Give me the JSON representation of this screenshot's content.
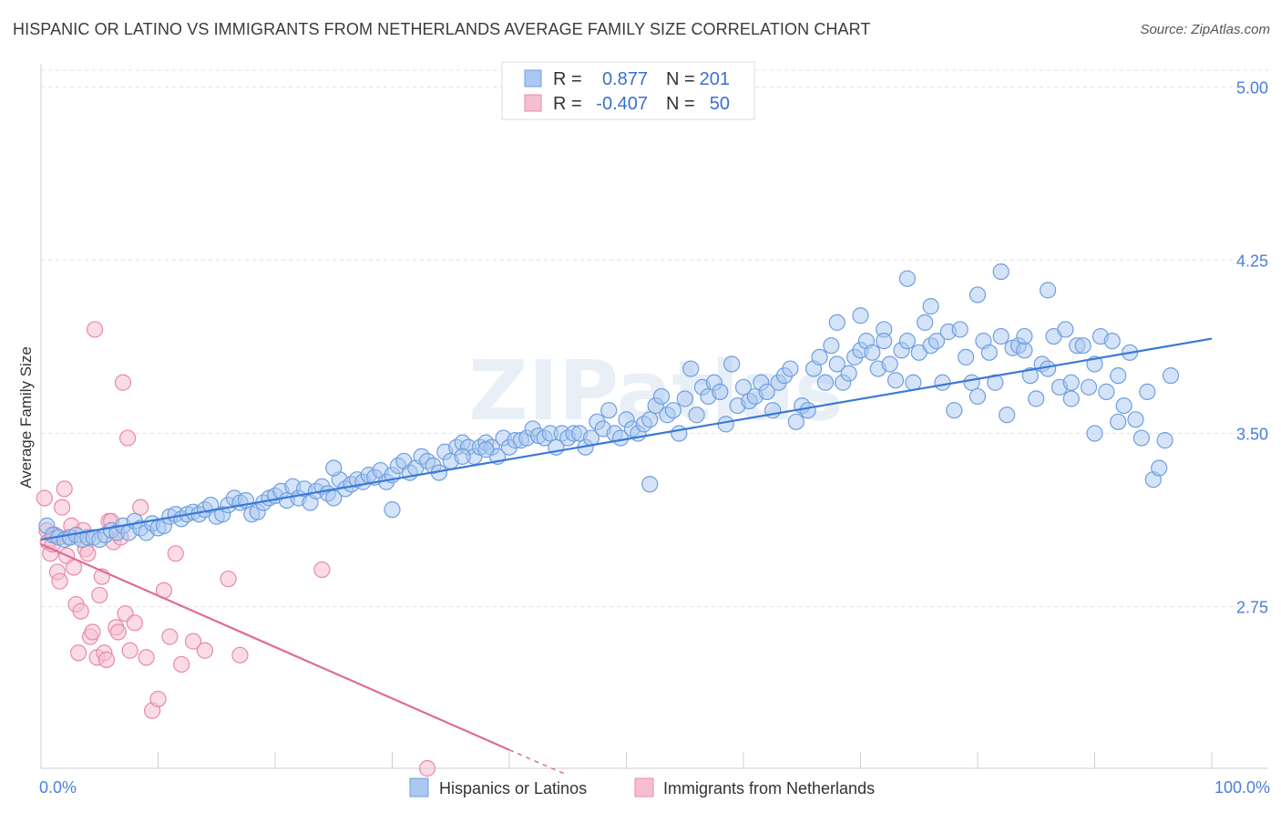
{
  "title": "HISPANIC OR LATINO VS IMMIGRANTS FROM NETHERLANDS AVERAGE FAMILY SIZE CORRELATION CHART",
  "source": "Source: ZipAtlas.com",
  "watermark": "ZIPatlas",
  "colors": {
    "blue_fill": "#aac8f0",
    "blue_stroke": "#6e9fe0",
    "blue_line": "#3a78d8",
    "pink_fill": "#f6bfd0",
    "pink_stroke": "#e889a8",
    "pink_line": "#e06a98",
    "tick_text": "#4a7fd8",
    "grid": "#e2e2e2"
  },
  "legend_top": {
    "rows": [
      {
        "r_label": "R =",
        "r_value": "0.877",
        "n_label": "N =",
        "n_value": "201"
      },
      {
        "r_label": "R =",
        "r_value": "-0.407",
        "n_label": "N =",
        "n_value": "50"
      }
    ]
  },
  "chart_data": {
    "type": "scatter",
    "title": "HISPANIC OR LATINO VS IMMIGRANTS FROM NETHERLANDS AVERAGE FAMILY SIZE CORRELATION CHART",
    "xlabel": "",
    "ylabel": "Average Family Size",
    "xlim": [
      0,
      100
    ],
    "ylim": [
      2.05,
      5.1
    ],
    "x_tick_labels": [
      "0.0%",
      "100.0%"
    ],
    "y_ticks": [
      2.75,
      3.5,
      4.25,
      5.0
    ],
    "y_tick_labels": [
      "2.75",
      "3.50",
      "4.25",
      "5.00"
    ],
    "grid": true,
    "legend_placement": "top-center and bottom",
    "series": [
      {
        "name": "Hispanics or Latinos",
        "r": 0.877,
        "n": 201,
        "trend": {
          "x": [
            0,
            100
          ],
          "y": [
            3.04,
            3.91
          ]
        },
        "points": [
          [
            0.5,
            3.1
          ],
          [
            1,
            3.06
          ],
          [
            1.5,
            3.05
          ],
          [
            2,
            3.04
          ],
          [
            2.5,
            3.05
          ],
          [
            3,
            3.06
          ],
          [
            3.5,
            3.04
          ],
          [
            4,
            3.05
          ],
          [
            4.5,
            3.05
          ],
          [
            5,
            3.04
          ],
          [
            5.5,
            3.06
          ],
          [
            6,
            3.08
          ],
          [
            6.5,
            3.07
          ],
          [
            7,
            3.1
          ],
          [
            7.5,
            3.07
          ],
          [
            8,
            3.12
          ],
          [
            8.5,
            3.09
          ],
          [
            9,
            3.07
          ],
          [
            9.5,
            3.11
          ],
          [
            10,
            3.09
          ],
          [
            10.5,
            3.1
          ],
          [
            11,
            3.14
          ],
          [
            11.5,
            3.15
          ],
          [
            12,
            3.13
          ],
          [
            12.5,
            3.15
          ],
          [
            13,
            3.16
          ],
          [
            13.5,
            3.15
          ],
          [
            14,
            3.17
          ],
          [
            14.5,
            3.19
          ],
          [
            15,
            3.14
          ],
          [
            15.5,
            3.15
          ],
          [
            16,
            3.19
          ],
          [
            16.5,
            3.22
          ],
          [
            17,
            3.2
          ],
          [
            17.5,
            3.21
          ],
          [
            18,
            3.15
          ],
          [
            18.5,
            3.16
          ],
          [
            19,
            3.2
          ],
          [
            19.5,
            3.22
          ],
          [
            20,
            3.23
          ],
          [
            20.5,
            3.25
          ],
          [
            21,
            3.21
          ],
          [
            21.5,
            3.27
          ],
          [
            22,
            3.22
          ],
          [
            22.5,
            3.26
          ],
          [
            23,
            3.2
          ],
          [
            23.5,
            3.25
          ],
          [
            24,
            3.27
          ],
          [
            24.5,
            3.24
          ],
          [
            25,
            3.22
          ],
          [
            25.5,
            3.3
          ],
          [
            26,
            3.26
          ],
          [
            26.5,
            3.28
          ],
          [
            27,
            3.3
          ],
          [
            27.5,
            3.29
          ],
          [
            28,
            3.32
          ],
          [
            28.5,
            3.31
          ],
          [
            29,
            3.34
          ],
          [
            29.5,
            3.29
          ],
          [
            30,
            3.32
          ],
          [
            30.5,
            3.36
          ],
          [
            31,
            3.38
          ],
          [
            31.5,
            3.33
          ],
          [
            32,
            3.35
          ],
          [
            32.5,
            3.4
          ],
          [
            33,
            3.38
          ],
          [
            33.5,
            3.36
          ],
          [
            34,
            3.33
          ],
          [
            34.5,
            3.42
          ],
          [
            35,
            3.38
          ],
          [
            35.5,
            3.44
          ],
          [
            36,
            3.46
          ],
          [
            36.5,
            3.44
          ],
          [
            37,
            3.4
          ],
          [
            37.5,
            3.44
          ],
          [
            38,
            3.46
          ],
          [
            38.5,
            3.44
          ],
          [
            39,
            3.4
          ],
          [
            39.5,
            3.48
          ],
          [
            40,
            3.44
          ],
          [
            40.5,
            3.47
          ],
          [
            41,
            3.47
          ],
          [
            41.5,
            3.48
          ],
          [
            42,
            3.52
          ],
          [
            42.5,
            3.49
          ],
          [
            43,
            3.48
          ],
          [
            43.5,
            3.5
          ],
          [
            44,
            3.44
          ],
          [
            44.5,
            3.5
          ],
          [
            45,
            3.48
          ],
          [
            45.5,
            3.5
          ],
          [
            46,
            3.5
          ],
          [
            46.5,
            3.44
          ],
          [
            47,
            3.48
          ],
          [
            47.5,
            3.55
          ],
          [
            48,
            3.52
          ],
          [
            48.5,
            3.6
          ],
          [
            49,
            3.5
          ],
          [
            49.5,
            3.48
          ],
          [
            50,
            3.56
          ],
          [
            50.5,
            3.52
          ],
          [
            51,
            3.5
          ],
          [
            51.5,
            3.54
          ],
          [
            52,
            3.56
          ],
          [
            52.5,
            3.62
          ],
          [
            53,
            3.66
          ],
          [
            53.5,
            3.58
          ],
          [
            54,
            3.6
          ],
          [
            54.5,
            3.5
          ],
          [
            55,
            3.65
          ],
          [
            55.5,
            3.78
          ],
          [
            56,
            3.58
          ],
          [
            56.5,
            3.7
          ],
          [
            57,
            3.66
          ],
          [
            57.5,
            3.72
          ],
          [
            58,
            3.68
          ],
          [
            58.5,
            3.54
          ],
          [
            59,
            3.8
          ],
          [
            59.5,
            3.62
          ],
          [
            60,
            3.7
          ],
          [
            60.5,
            3.64
          ],
          [
            61,
            3.66
          ],
          [
            61.5,
            3.72
          ],
          [
            62,
            3.68
          ],
          [
            62.5,
            3.6
          ],
          [
            63,
            3.72
          ],
          [
            63.5,
            3.75
          ],
          [
            64,
            3.78
          ],
          [
            64.5,
            3.55
          ],
          [
            65,
            3.62
          ],
          [
            65.5,
            3.6
          ],
          [
            66,
            3.78
          ],
          [
            66.5,
            3.83
          ],
          [
            67,
            3.72
          ],
          [
            67.5,
            3.88
          ],
          [
            68,
            3.8
          ],
          [
            68.5,
            3.72
          ],
          [
            69,
            3.76
          ],
          [
            69.5,
            3.83
          ],
          [
            70,
            3.86
          ],
          [
            70.5,
            3.9
          ],
          [
            71,
            3.85
          ],
          [
            71.5,
            3.78
          ],
          [
            72,
            3.95
          ],
          [
            72.5,
            3.8
          ],
          [
            73,
            3.73
          ],
          [
            73.5,
            3.86
          ],
          [
            74,
            3.9
          ],
          [
            74.5,
            3.72
          ],
          [
            75,
            3.85
          ],
          [
            75.5,
            3.98
          ],
          [
            76,
            3.88
          ],
          [
            76.5,
            3.9
          ],
          [
            77,
            3.72
          ],
          [
            77.5,
            3.94
          ],
          [
            78,
            3.6
          ],
          [
            78.5,
            3.95
          ],
          [
            79,
            3.83
          ],
          [
            79.5,
            3.72
          ],
          [
            80,
            3.66
          ],
          [
            80.5,
            3.9
          ],
          [
            81,
            3.85
          ],
          [
            81.5,
            3.72
          ],
          [
            82,
            3.92
          ],
          [
            82.5,
            3.58
          ],
          [
            83,
            3.87
          ],
          [
            83.5,
            3.88
          ],
          [
            84,
            3.86
          ],
          [
            84.5,
            3.75
          ],
          [
            85,
            3.65
          ],
          [
            85.5,
            3.8
          ],
          [
            86,
            3.78
          ],
          [
            86.5,
            3.92
          ],
          [
            87,
            3.7
          ],
          [
            87.5,
            3.95
          ],
          [
            88,
            3.72
          ],
          [
            88.5,
            3.88
          ],
          [
            89,
            3.88
          ],
          [
            89.5,
            3.7
          ],
          [
            90,
            3.8
          ],
          [
            90.5,
            3.92
          ],
          [
            91,
            3.68
          ],
          [
            91.5,
            3.9
          ],
          [
            92,
            3.75
          ],
          [
            92.5,
            3.62
          ],
          [
            93,
            3.85
          ],
          [
            93.5,
            3.56
          ],
          [
            94,
            3.48
          ],
          [
            94.5,
            3.68
          ],
          [
            95,
            3.3
          ],
          [
            95.5,
            3.35
          ],
          [
            96,
            3.47
          ],
          [
            96.5,
            3.75
          ],
          [
            74,
            4.17
          ],
          [
            82,
            4.2
          ],
          [
            86,
            4.12
          ],
          [
            76,
            4.05
          ],
          [
            80,
            4.1
          ],
          [
            70,
            4.01
          ],
          [
            84,
            3.92
          ],
          [
            68,
            3.98
          ],
          [
            72,
            3.9
          ],
          [
            88,
            3.65
          ],
          [
            90,
            3.5
          ],
          [
            92,
            3.55
          ],
          [
            38,
            3.43
          ],
          [
            36,
            3.4
          ],
          [
            30,
            3.17
          ],
          [
            25,
            3.35
          ],
          [
            52,
            3.28
          ]
        ]
      },
      {
        "name": "Immigrants from Netherlands",
        "r": -0.407,
        "n": 50,
        "trend": {
          "x": [
            0,
            40
          ],
          "y": [
            3.02,
            2.13
          ]
        },
        "trend_dash": {
          "x": [
            40,
            45
          ],
          "y": [
            2.13,
            2.02
          ]
        },
        "points": [
          [
            0.3,
            3.22
          ],
          [
            0.5,
            3.08
          ],
          [
            0.6,
            3.03
          ],
          [
            0.8,
            2.98
          ],
          [
            1,
            3.02
          ],
          [
            1.2,
            3.06
          ],
          [
            1.4,
            2.9
          ],
          [
            1.6,
            2.86
          ],
          [
            1.8,
            3.18
          ],
          [
            2,
            3.26
          ],
          [
            2.2,
            2.97
          ],
          [
            2.4,
            3.05
          ],
          [
            2.6,
            3.1
          ],
          [
            2.8,
            2.92
          ],
          [
            3,
            2.76
          ],
          [
            3.2,
            2.55
          ],
          [
            3.4,
            2.73
          ],
          [
            3.6,
            3.08
          ],
          [
            3.8,
            3.0
          ],
          [
            4,
            2.98
          ],
          [
            4.2,
            2.62
          ],
          [
            4.4,
            2.64
          ],
          [
            4.6,
            3.95
          ],
          [
            4.8,
            2.53
          ],
          [
            5,
            2.8
          ],
          [
            5.2,
            2.88
          ],
          [
            5.4,
            2.55
          ],
          [
            5.6,
            2.52
          ],
          [
            5.8,
            3.12
          ],
          [
            6,
            3.12
          ],
          [
            6.2,
            3.03
          ],
          [
            6.4,
            2.66
          ],
          [
            6.6,
            2.64
          ],
          [
            6.8,
            3.05
          ],
          [
            7,
            3.72
          ],
          [
            7.2,
            2.72
          ],
          [
            7.4,
            3.48
          ],
          [
            7.6,
            2.56
          ],
          [
            8,
            2.68
          ],
          [
            8.5,
            3.18
          ],
          [
            9,
            2.53
          ],
          [
            9.5,
            2.3
          ],
          [
            10,
            2.35
          ],
          [
            10.5,
            2.82
          ],
          [
            11,
            2.62
          ],
          [
            11.5,
            2.98
          ],
          [
            12,
            2.5
          ],
          [
            13,
            2.6
          ],
          [
            14,
            2.56
          ],
          [
            16,
            2.87
          ],
          [
            17,
            2.54
          ],
          [
            24,
            2.91
          ],
          [
            33,
            2.05
          ]
        ]
      }
    ]
  },
  "bottom_legend": [
    {
      "label": "Hispanics or Latinos",
      "swatch": "blue"
    },
    {
      "label": "Immigrants from Netherlands",
      "swatch": "pink"
    }
  ]
}
